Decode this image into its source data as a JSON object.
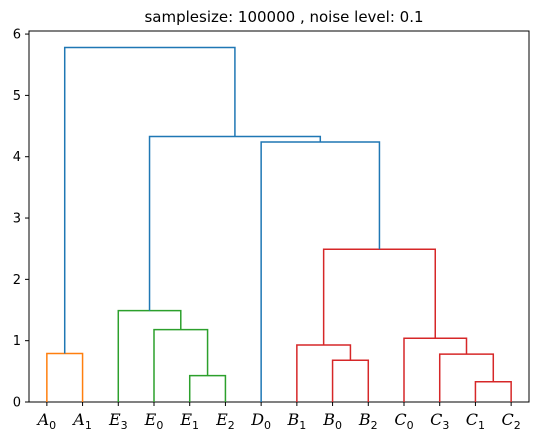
{
  "chart_data": {
    "type": "dendrogram",
    "title": "samplesize: 100000 , noise level: 0.1",
    "ylim": [
      0,
      6.05
    ],
    "yticks": [
      0,
      1,
      2,
      3,
      4,
      5,
      6
    ],
    "grid": false,
    "leaves": [
      {
        "base": "A",
        "sub": "0"
      },
      {
        "base": "A",
        "sub": "1"
      },
      {
        "base": "E",
        "sub": "3"
      },
      {
        "base": "E",
        "sub": "0"
      },
      {
        "base": "E",
        "sub": "1"
      },
      {
        "base": "E",
        "sub": "2"
      },
      {
        "base": "D",
        "sub": "0"
      },
      {
        "base": "B",
        "sub": "1"
      },
      {
        "base": "B",
        "sub": "0"
      },
      {
        "base": "B",
        "sub": "2"
      },
      {
        "base": "C",
        "sub": "0"
      },
      {
        "base": "C",
        "sub": "3"
      },
      {
        "base": "C",
        "sub": "1"
      },
      {
        "base": "C",
        "sub": "2"
      }
    ],
    "colors": {
      "orange": "#ff7f0e",
      "green": "#2ca02c",
      "red": "#d62728",
      "blue": "#1f77b4"
    },
    "merges": [
      {
        "left": 0,
        "right": 1,
        "height": 0.79,
        "color": "orange"
      },
      {
        "left": 4,
        "right": 5,
        "height": 0.43,
        "color": "green"
      },
      {
        "left": 3,
        "right": "m1",
        "height": 1.18,
        "color": "green"
      },
      {
        "left": 2,
        "right": "m2",
        "height": 1.49,
        "color": "green"
      },
      {
        "left": 8,
        "right": 9,
        "height": 0.68,
        "color": "red"
      },
      {
        "left": 7,
        "right": "m4",
        "height": 0.93,
        "color": "red"
      },
      {
        "left": 12,
        "right": 13,
        "height": 0.33,
        "color": "red"
      },
      {
        "left": 11,
        "right": "m6",
        "height": 0.78,
        "color": "red"
      },
      {
        "left": 10,
        "right": "m7",
        "height": 1.04,
        "color": "red"
      },
      {
        "left": "m5",
        "right": "m8",
        "height": 2.49,
        "color": "red"
      },
      {
        "left": 6,
        "right": "m9",
        "height": 4.24,
        "color": "blue"
      },
      {
        "left": "m3",
        "right": "m10",
        "height": 4.33,
        "color": "blue"
      },
      {
        "left": "m0",
        "right": "m11",
        "height": 5.78,
        "color": "blue"
      }
    ]
  }
}
